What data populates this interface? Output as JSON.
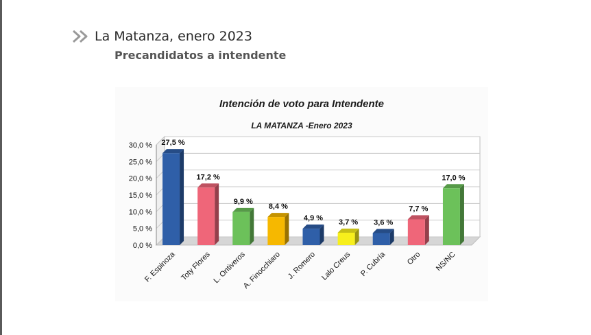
{
  "header": {
    "title": "La Matanza, enero 2023",
    "subtitle": "Precandidatos a intendente",
    "icon": "double-chevron-icon"
  },
  "chart_data": {
    "type": "bar",
    "title": "Intención de voto para Intendente",
    "subtitle": "LA MATANZA -Enero 2023",
    "xlabel": "",
    "ylabel": "",
    "ylim": [
      0,
      30
    ],
    "yticks": [
      0,
      5,
      10,
      15,
      20,
      25,
      30
    ],
    "ytick_labels": [
      "0,0 %",
      "5,0 %",
      "10,0 %",
      "15,0 %",
      "20,0 %",
      "25,0 %",
      "30,0 %"
    ],
    "grid": true,
    "legend": "none",
    "categories": [
      "F. Espinoza",
      "Toty Flores",
      "L. Ontiveros",
      "A. Finocchiaro",
      "J. Romero",
      "Lalo Creus",
      "P. Cubría",
      "Otro",
      "NS/NC"
    ],
    "values": [
      27.5,
      17.2,
      9.9,
      8.4,
      4.9,
      3.7,
      3.6,
      7.7,
      17.0
    ],
    "value_labels": [
      "27,5 %",
      "17,2 %",
      "9,9 %",
      "8,4 %",
      "4,9 %",
      "3,7 %",
      "3,6 %",
      "7,7 %",
      "17,0 %"
    ],
    "colors": [
      "#2f5fa8",
      "#ef6679",
      "#6cc15a",
      "#f6b800",
      "#2f5fa8",
      "#f7ef1c",
      "#2f5fa8",
      "#ef6679",
      "#6cc15a"
    ]
  }
}
